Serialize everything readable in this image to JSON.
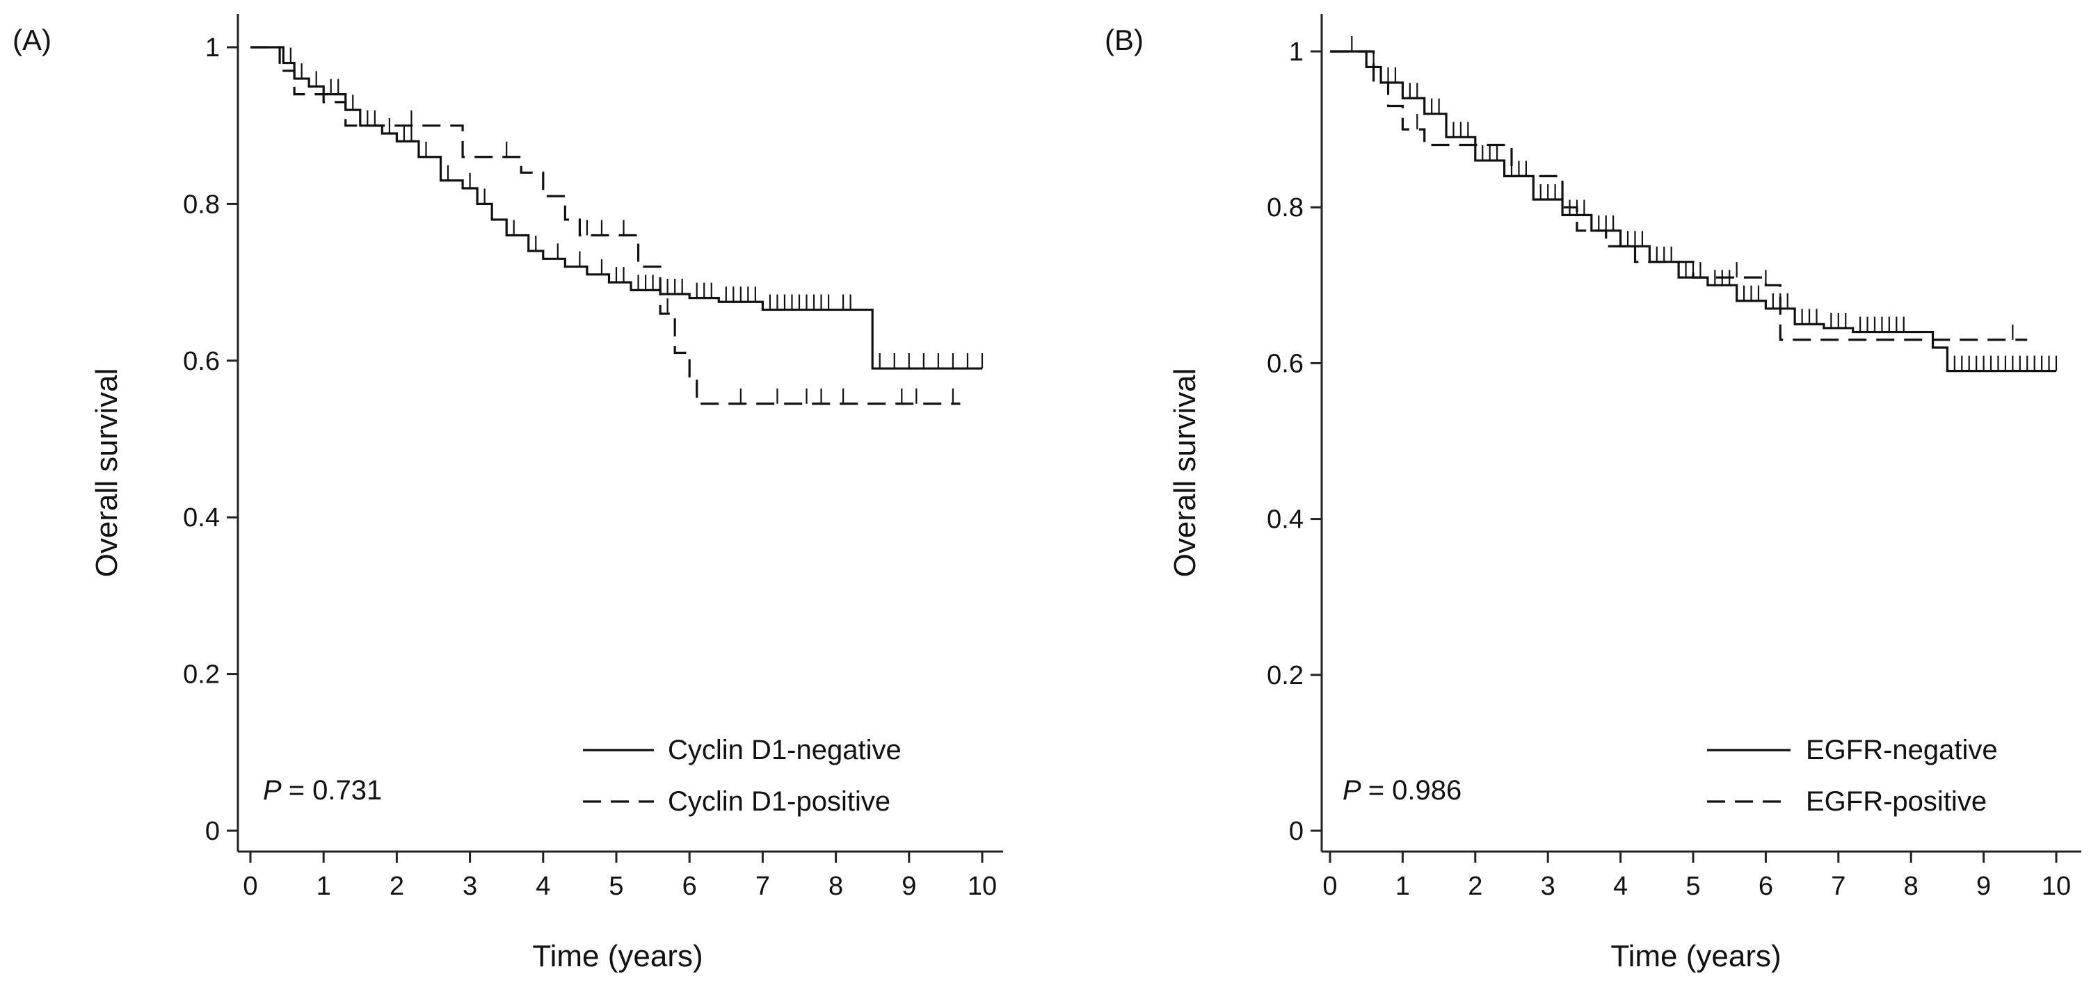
{
  "chart_data": [
    {
      "type": "line",
      "panel_label": "(A)",
      "xlabel": "Time (years)",
      "ylabel": "Overall survival",
      "xlim": [
        0,
        10
      ],
      "ylim": [
        0,
        1
      ],
      "x_ticks": [
        0,
        1,
        2,
        3,
        4,
        5,
        6,
        7,
        8,
        9,
        10
      ],
      "x_tick_labels": [
        "0",
        "1",
        "2",
        "3",
        "4",
        "5",
        "6",
        "7",
        "8",
        "9",
        "10"
      ],
      "y_ticks": [
        0,
        0.2,
        0.4,
        0.6,
        0.8,
        1
      ],
      "y_tick_labels": [
        "0",
        "0.2",
        "0.4",
        "0.6",
        "0.8",
        "1"
      ],
      "grid": false,
      "legend_position": "bottom-right",
      "annotation": {
        "p_symbol": "P",
        "p_value": "= 0.731"
      },
      "series": [
        {
          "name": "Cyclin D1-negative",
          "style": "solid",
          "x": [
            0,
            0.45,
            0.6,
            0.8,
            1.0,
            1.3,
            1.5,
            1.8,
            2.0,
            2.3,
            2.6,
            2.9,
            3.1,
            3.3,
            3.5,
            3.8,
            4.0,
            4.3,
            4.6,
            4.9,
            5.2,
            5.6,
            6.0,
            6.4,
            7.0,
            8.0,
            8.3,
            8.5,
            10.0
          ],
          "y": [
            1.0,
            0.98,
            0.96,
            0.95,
            0.94,
            0.92,
            0.9,
            0.89,
            0.88,
            0.86,
            0.83,
            0.82,
            0.8,
            0.78,
            0.76,
            0.74,
            0.73,
            0.72,
            0.71,
            0.7,
            0.69,
            0.685,
            0.68,
            0.675,
            0.665,
            0.665,
            0.665,
            0.59,
            0.59
          ],
          "censor_x": [
            0.55,
            0.7,
            0.9,
            1.1,
            1.2,
            1.4,
            1.6,
            1.7,
            1.9,
            2.1,
            2.2,
            2.4,
            2.7,
            3.0,
            3.2,
            3.6,
            3.9,
            4.2,
            4.5,
            4.8,
            5.0,
            5.1,
            5.3,
            5.4,
            5.5,
            5.7,
            5.8,
            5.9,
            6.1,
            6.2,
            6.3,
            6.5,
            6.6,
            6.7,
            6.8,
            6.9,
            7.1,
            7.2,
            7.3,
            7.4,
            7.5,
            7.6,
            7.7,
            7.8,
            7.9,
            8.1,
            8.2,
            8.6,
            8.8,
            9.0,
            9.2,
            9.4,
            9.6,
            9.8,
            10.0
          ]
        },
        {
          "name": "Cyclin D1-positive",
          "style": "dashed",
          "x": [
            0,
            0.4,
            0.6,
            1.0,
            1.3,
            2.6,
            2.9,
            3.7,
            4.0,
            4.3,
            4.5,
            5.3,
            5.6,
            5.8,
            6.0,
            6.1,
            9.7
          ],
          "y": [
            1.0,
            0.97,
            0.94,
            0.93,
            0.9,
            0.9,
            0.86,
            0.84,
            0.81,
            0.78,
            0.76,
            0.72,
            0.66,
            0.61,
            0.58,
            0.545,
            0.545
          ],
          "censor_x": [
            2.2,
            3.5,
            4.6,
            4.8,
            5.1,
            5.7,
            6.7,
            7.2,
            7.6,
            7.8,
            8.1,
            8.9,
            9.1,
            9.6
          ]
        }
      ]
    },
    {
      "type": "line",
      "panel_label": "(B)",
      "xlabel": "Time (years)",
      "ylabel": "Overall survival",
      "xlim": [
        0,
        10
      ],
      "ylim": [
        0,
        1
      ],
      "x_ticks": [
        0,
        1,
        2,
        3,
        4,
        5,
        6,
        7,
        8,
        9,
        10
      ],
      "x_tick_labels": [
        "0",
        "1",
        "2",
        "3",
        "4",
        "5",
        "6",
        "7",
        "8",
        "9",
        "10"
      ],
      "y_ticks": [
        0,
        0.2,
        0.4,
        0.6,
        0.8,
        1
      ],
      "y_tick_labels": [
        "0",
        "0.2",
        "0.4",
        "0.6",
        "0.8",
        "1"
      ],
      "grid": false,
      "legend_position": "bottom-right",
      "annotation": {
        "p_symbol": "P",
        "p_value": "= 0.986"
      },
      "series": [
        {
          "name": "EGFR-negative",
          "style": "solid",
          "x": [
            0,
            0.5,
            0.7,
            1.0,
            1.3,
            1.6,
            2.0,
            2.4,
            2.8,
            3.2,
            3.6,
            4.0,
            4.4,
            4.8,
            5.2,
            5.6,
            6.0,
            6.4,
            6.8,
            7.2,
            8.0,
            8.3,
            8.5,
            10.0
          ],
          "y": [
            1.0,
            0.98,
            0.96,
            0.94,
            0.92,
            0.89,
            0.86,
            0.84,
            0.81,
            0.79,
            0.77,
            0.75,
            0.73,
            0.71,
            0.7,
            0.68,
            0.67,
            0.65,
            0.645,
            0.64,
            0.64,
            0.62,
            0.59,
            0.59
          ],
          "censor_x": [
            0.6,
            0.8,
            0.9,
            1.1,
            1.2,
            1.4,
            1.5,
            1.7,
            1.8,
            1.9,
            2.1,
            2.2,
            2.3,
            2.5,
            2.6,
            2.7,
            2.9,
            3.0,
            3.1,
            3.3,
            3.4,
            3.5,
            3.7,
            3.8,
            3.9,
            4.1,
            4.2,
            4.3,
            4.5,
            4.6,
            4.7,
            4.9,
            5.0,
            5.1,
            5.3,
            5.4,
            5.5,
            5.7,
            5.8,
            5.9,
            6.1,
            6.2,
            6.3,
            6.5,
            6.6,
            6.7,
            6.9,
            7.0,
            7.1,
            7.3,
            7.4,
            7.5,
            7.6,
            7.7,
            7.8,
            7.9,
            8.6,
            8.7,
            8.8,
            8.9,
            9.0,
            9.1,
            9.2,
            9.3,
            9.4,
            9.5,
            9.6,
            9.7,
            9.8,
            9.9,
            10.0
          ]
        },
        {
          "name": "EGFR-positive",
          "style": "dashed",
          "x": [
            0,
            0.6,
            0.8,
            1.0,
            1.3,
            2.2,
            2.5,
            3.2,
            3.4,
            3.8,
            4.2,
            5.0,
            6.0,
            6.2,
            8.4,
            9.6
          ],
          "y": [
            1.0,
            0.96,
            0.93,
            0.9,
            0.88,
            0.88,
            0.84,
            0.8,
            0.77,
            0.75,
            0.73,
            0.71,
            0.7,
            0.63,
            0.63,
            0.63
          ],
          "censor_x": [
            0.3,
            1.2,
            4.4,
            5.6,
            6.0,
            9.4
          ]
        }
      ]
    }
  ]
}
